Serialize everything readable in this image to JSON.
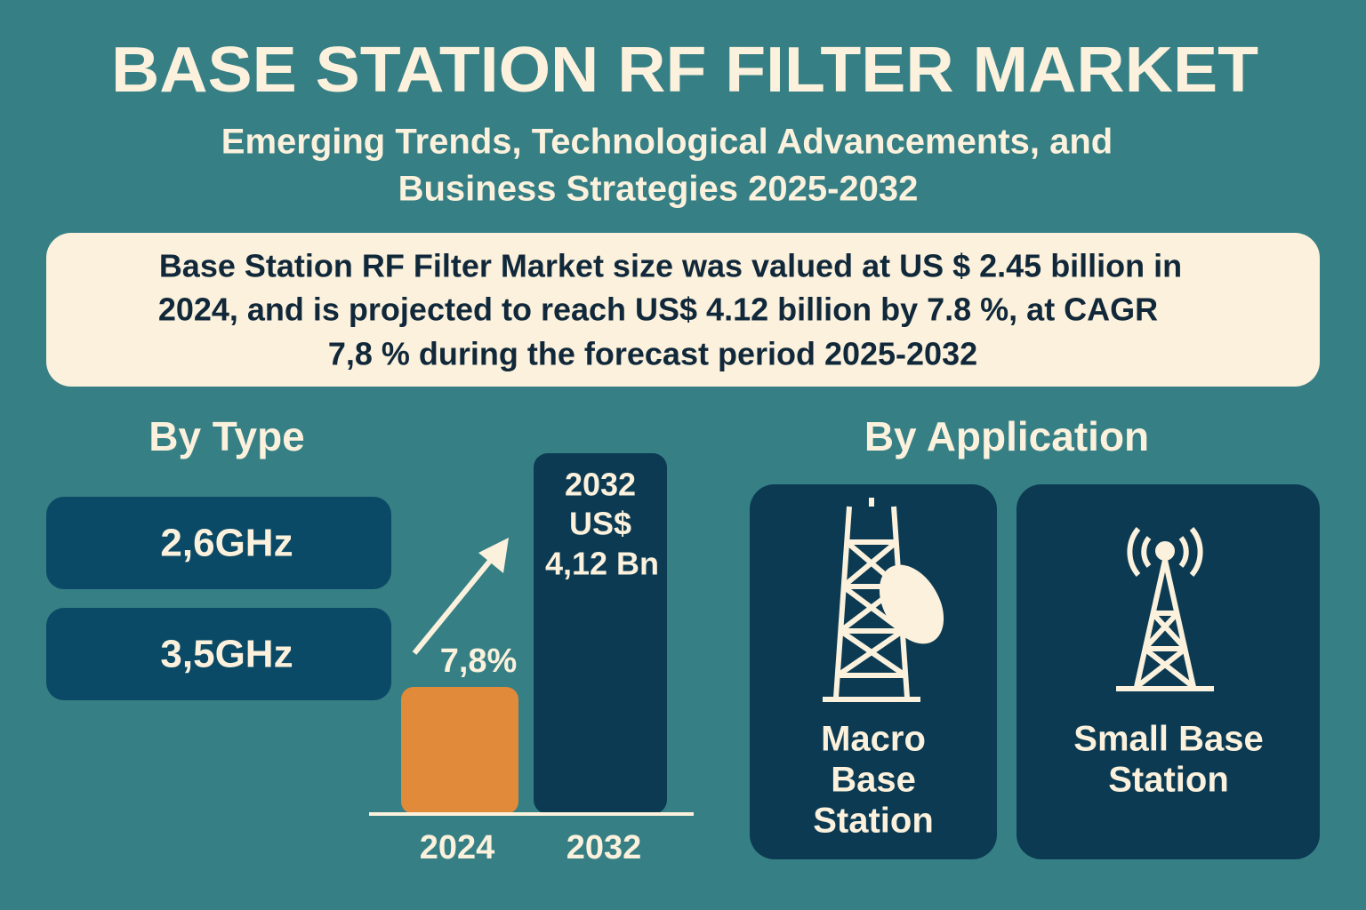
{
  "header": {
    "title": "BASE STATION RF FILTER MARKET",
    "subtitle_lines": [
      "Emerging Trends, Technological Advancements, and",
      "Business Strategies 2025-2032"
    ]
  },
  "summary_lines": [
    "Base Station RF Filter Market size was valued at US $ 2.45 billion in",
    "2024, and is projected to reach US$ 4.12 billion by 7.8 %, at CAGR",
    "7,8 % during the forecast period 2025-2032"
  ],
  "by_type": {
    "heading": "By Type",
    "items": [
      "2,6GHz",
      "3,5GHz"
    ]
  },
  "growth": {
    "cagr_label": "7,8%",
    "bar_label_lines": [
      "2032",
      "US$",
      "4,12 Bn"
    ],
    "x_labels": [
      "2024",
      "2032"
    ]
  },
  "by_application": {
    "heading": "By Application",
    "cards": [
      [
        "Macro",
        "Base",
        "Station"
      ],
      [
        "Small Base",
        "Station"
      ]
    ]
  }
}
